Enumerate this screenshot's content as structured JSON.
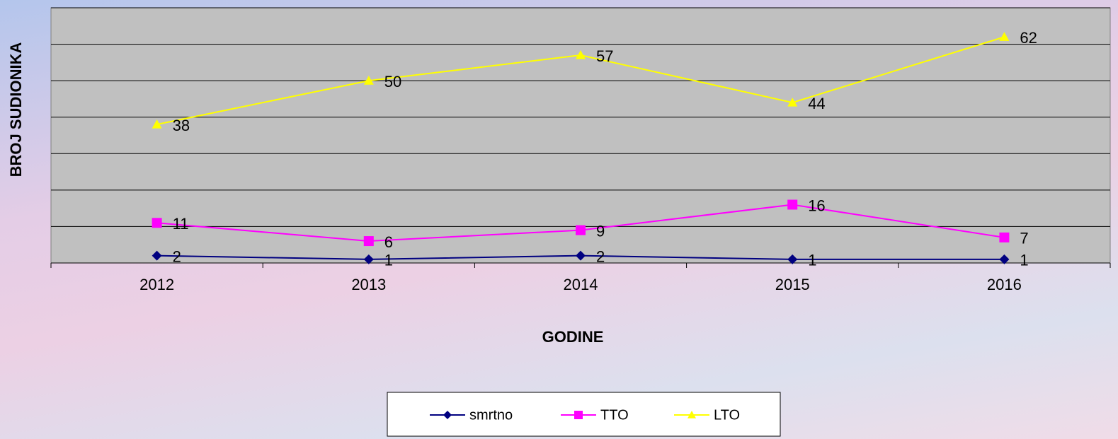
{
  "chart_data": {
    "type": "line",
    "x_label": "GODINE",
    "y_label": "BROJ SUDIONIKA",
    "categories": [
      "2012",
      "2013",
      "2014",
      "2015",
      "2016"
    ],
    "series": [
      {
        "name": "smrtno",
        "color": "#000080",
        "marker": "diamond",
        "values": [
          2,
          1,
          2,
          1,
          1
        ]
      },
      {
        "name": "TTO",
        "color": "#ff00ff",
        "marker": "square",
        "values": [
          11,
          6,
          9,
          16,
          7
        ]
      },
      {
        "name": "LTO",
        "color": "#ffff00",
        "marker": "triangle",
        "values": [
          38,
          50,
          57,
          44,
          62
        ]
      }
    ],
    "ylim": [
      0,
      70
    ],
    "yticks": [
      0,
      10,
      20,
      30,
      40,
      50,
      60,
      70
    ],
    "grid": true,
    "legend": "bottom"
  }
}
